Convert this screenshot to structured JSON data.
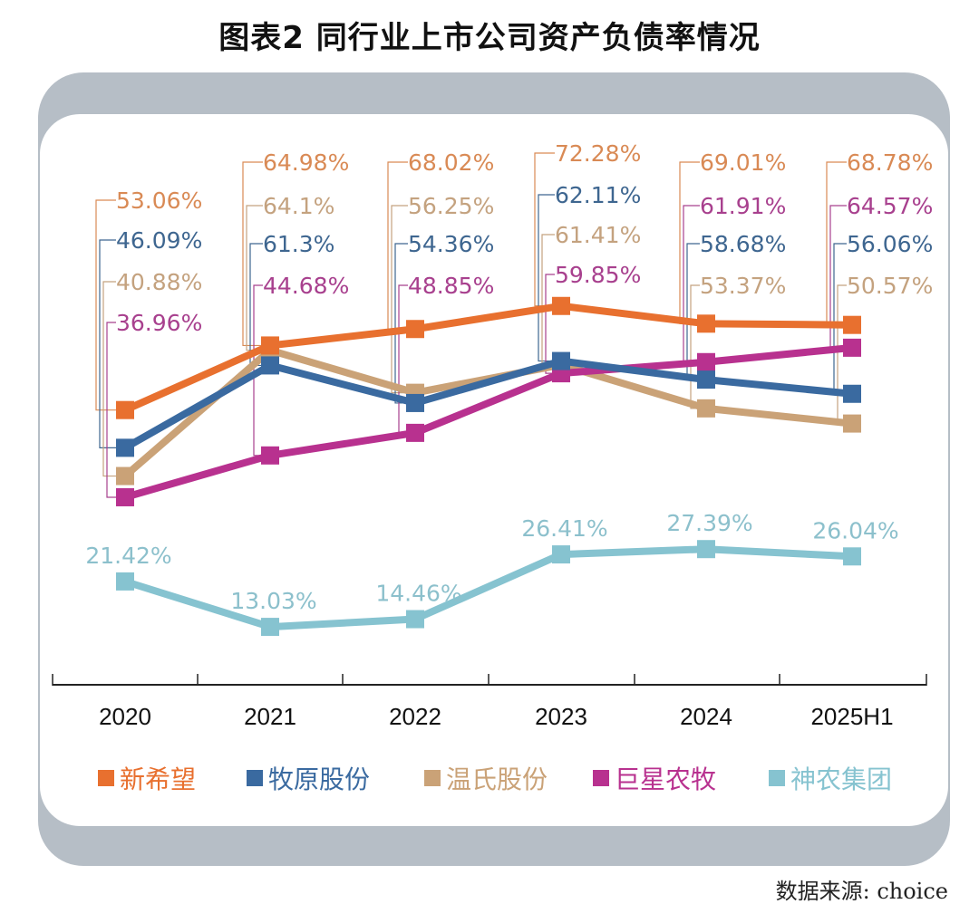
{
  "title": "图表2  同行业上市公司资产负债率情况",
  "source": "数据来源: choice",
  "chart_data": {
    "type": "line",
    "title": "图表2  同行业上市公司资产负债率情况",
    "xlabel": "",
    "ylabel": "",
    "categories": [
      "2020",
      "2021",
      "2022",
      "2023",
      "2024",
      "2025H1"
    ],
    "unit": "%",
    "ylim": [
      0,
      80
    ],
    "grid": false,
    "legend_position": "bottom",
    "series": [
      {
        "name": "新希望",
        "color": "#e8702f",
        "label_color": "#d98a55",
        "values": [
          53.06,
          64.98,
          68.02,
          72.28,
          69.01,
          68.78
        ],
        "labels": [
          "53.06%",
          "64.98%",
          "68.02%",
          "72.28%",
          "69.01%",
          "68.78%"
        ]
      },
      {
        "name": "牧原股份",
        "color": "#3a6aa0",
        "label_color": "#3e6690",
        "values": [
          46.09,
          61.3,
          54.36,
          62.11,
          58.68,
          56.06
        ],
        "labels": [
          "46.09%",
          "61.3%",
          "54.36%",
          "62.11%",
          "58.68%",
          "56.06%"
        ]
      },
      {
        "name": "温氏股份",
        "color": "#caa277",
        "label_color": "#c4a27f",
        "values": [
          40.88,
          64.1,
          56.25,
          61.41,
          53.37,
          50.57
        ],
        "labels": [
          "40.88%",
          "64.1%",
          "56.25%",
          "61.41%",
          "53.37%",
          "50.57%"
        ]
      },
      {
        "name": "巨星农牧",
        "color": "#b8318f",
        "label_color": "#a8408e",
        "values": [
          36.96,
          44.68,
          48.85,
          59.85,
          61.91,
          64.57
        ],
        "labels": [
          "36.96%",
          "44.68%",
          "48.85%",
          "59.85%",
          "61.91%",
          "64.57%"
        ]
      },
      {
        "name": "神农集团",
        "color": "#86c3d0",
        "label_color": "#8cc0cc",
        "values": [
          21.42,
          13.03,
          14.46,
          26.41,
          27.39,
          26.04
        ],
        "labels": [
          "21.42%",
          "13.03%",
          "14.46%",
          "26.41%",
          "27.39%",
          "26.04%"
        ]
      }
    ],
    "callout_order": [
      [
        0,
        1,
        2,
        3
      ],
      [
        0,
        2,
        1,
        3
      ],
      [
        0,
        2,
        1,
        3
      ],
      [
        0,
        1,
        2,
        3
      ],
      [
        0,
        3,
        1,
        2
      ],
      [
        0,
        3,
        1,
        2
      ]
    ]
  }
}
